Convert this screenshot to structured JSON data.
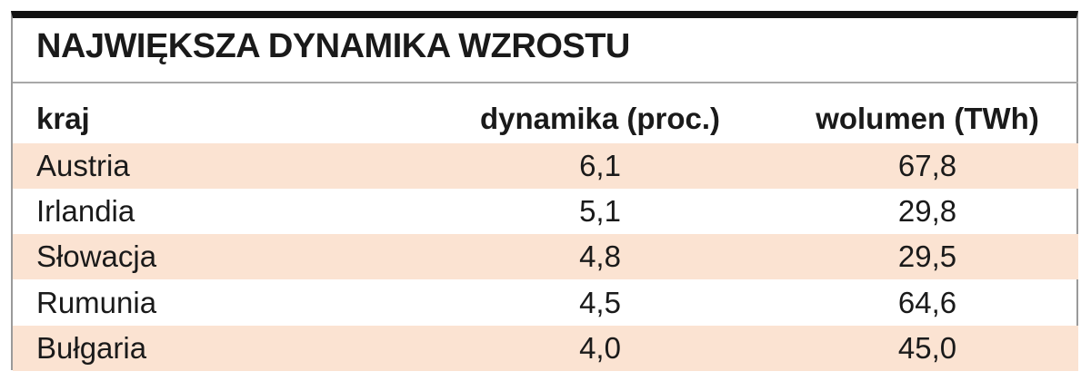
{
  "title": "NAJWIĘKSZA DYNAMIKA WZROSTU",
  "table": {
    "header": [
      "kraj",
      "dynamika (proc.)",
      "wolumen (TWh)"
    ],
    "rows": [
      [
        "Austria",
        "6,1",
        "67,8"
      ],
      [
        "Irlandia",
        "5,1",
        "29,8"
      ],
      [
        "Słowacja",
        "4,8",
        "29,5"
      ],
      [
        "Rumunia",
        "4,5",
        "64,6"
      ],
      [
        "Bułgaria",
        "4,0",
        "45,0"
      ]
    ]
  }
}
